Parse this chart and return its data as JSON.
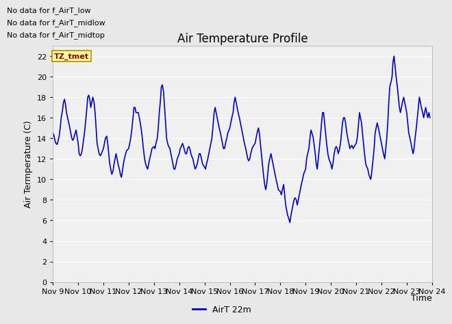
{
  "title": "Air Temperature Profile",
  "xlabel": "Time",
  "ylabel": "Air Termperature (C)",
  "xlim_days": [
    9,
    24
  ],
  "ylim": [
    0,
    23
  ],
  "yticks": [
    0,
    2,
    4,
    6,
    8,
    10,
    12,
    14,
    16,
    18,
    20,
    22
  ],
  "xtick_labels": [
    "Nov 9",
    "Nov 10",
    "Nov 11",
    "Nov 12",
    "Nov 13",
    "Nov 14",
    "Nov 15",
    "Nov 16",
    "Nov 17",
    "Nov 18",
    "Nov 19",
    "Nov 20",
    "Nov 21",
    "Nov 22",
    "Nov 23",
    "Nov 24"
  ],
  "line_color": "#0000cc",
  "line_width": 1.2,
  "bg_color": "#e8e8e8",
  "plot_bg_color": "#f0f0f0",
  "legend_label": "AirT 22m",
  "legend_line_color": "#0000cc",
  "annotations": [
    "No data for f_AirT_low",
    "No data for f_AirT_midlow",
    "No data for f_AirT_midtop"
  ],
  "tz_label": "TZ_tmet",
  "title_fontsize": 12,
  "axis_label_fontsize": 9,
  "tick_fontsize": 8,
  "annot_fontsize": 8,
  "time_series": [
    [
      9.0,
      14.5
    ],
    [
      9.04,
      14.3
    ],
    [
      9.08,
      13.8
    ],
    [
      9.12,
      13.5
    ],
    [
      9.17,
      13.4
    ],
    [
      9.21,
      13.8
    ],
    [
      9.25,
      14.2
    ],
    [
      9.29,
      15.0
    ],
    [
      9.33,
      16.0
    ],
    [
      9.38,
      16.7
    ],
    [
      9.42,
      17.5
    ],
    [
      9.46,
      17.8
    ],
    [
      9.5,
      17.3
    ],
    [
      9.54,
      16.5
    ],
    [
      9.58,
      16.0
    ],
    [
      9.63,
      15.5
    ],
    [
      9.67,
      15.0
    ],
    [
      9.71,
      14.5
    ],
    [
      9.75,
      14.0
    ],
    [
      9.79,
      13.8
    ],
    [
      9.83,
      14.0
    ],
    [
      9.88,
      14.5
    ],
    [
      9.92,
      14.8
    ],
    [
      10.0,
      13.5
    ],
    [
      10.04,
      12.5
    ],
    [
      10.08,
      12.3
    ],
    [
      10.13,
      12.5
    ],
    [
      10.17,
      13.0
    ],
    [
      10.21,
      13.8
    ],
    [
      10.25,
      14.5
    ],
    [
      10.29,
      15.5
    ],
    [
      10.33,
      16.5
    ],
    [
      10.38,
      18.0
    ],
    [
      10.42,
      18.2
    ],
    [
      10.46,
      17.8
    ],
    [
      10.5,
      17.0
    ],
    [
      10.54,
      17.5
    ],
    [
      10.58,
      18.0
    ],
    [
      10.63,
      17.5
    ],
    [
      10.67,
      16.5
    ],
    [
      10.71,
      15.0
    ],
    [
      10.75,
      13.5
    ],
    [
      10.79,
      13.0
    ],
    [
      10.83,
      12.5
    ],
    [
      10.88,
      12.3
    ],
    [
      10.92,
      12.5
    ],
    [
      11.0,
      13.0
    ],
    [
      11.04,
      13.5
    ],
    [
      11.08,
      14.0
    ],
    [
      11.13,
      14.2
    ],
    [
      11.17,
      13.5
    ],
    [
      11.21,
      12.5
    ],
    [
      11.25,
      11.5
    ],
    [
      11.29,
      11.0
    ],
    [
      11.33,
      10.5
    ],
    [
      11.38,
      10.8
    ],
    [
      11.42,
      11.5
    ],
    [
      11.46,
      12.0
    ],
    [
      11.5,
      12.5
    ],
    [
      11.54,
      12.0
    ],
    [
      11.58,
      11.5
    ],
    [
      11.63,
      11.0
    ],
    [
      11.67,
      10.5
    ],
    [
      11.71,
      10.2
    ],
    [
      11.75,
      10.8
    ],
    [
      11.79,
      11.5
    ],
    [
      11.83,
      12.0
    ],
    [
      11.88,
      12.5
    ],
    [
      11.92,
      12.8
    ],
    [
      12.0,
      13.0
    ],
    [
      12.04,
      13.5
    ],
    [
      12.08,
      14.0
    ],
    [
      12.13,
      15.0
    ],
    [
      12.17,
      16.0
    ],
    [
      12.21,
      17.0
    ],
    [
      12.25,
      17.0
    ],
    [
      12.29,
      16.5
    ],
    [
      12.33,
      16.5
    ],
    [
      12.38,
      16.5
    ],
    [
      12.42,
      16.0
    ],
    [
      12.46,
      15.5
    ],
    [
      12.5,
      14.8
    ],
    [
      12.54,
      14.0
    ],
    [
      12.58,
      13.0
    ],
    [
      12.63,
      12.0
    ],
    [
      12.67,
      11.5
    ],
    [
      12.71,
      11.2
    ],
    [
      12.75,
      11.0
    ],
    [
      12.79,
      11.5
    ],
    [
      12.83,
      12.0
    ],
    [
      12.88,
      12.5
    ],
    [
      12.92,
      13.0
    ],
    [
      13.0,
      13.2
    ],
    [
      13.04,
      13.0
    ],
    [
      13.08,
      13.5
    ],
    [
      13.13,
      14.0
    ],
    [
      13.17,
      15.0
    ],
    [
      13.21,
      16.5
    ],
    [
      13.25,
      17.5
    ],
    [
      13.29,
      19.0
    ],
    [
      13.33,
      19.2
    ],
    [
      13.38,
      18.5
    ],
    [
      13.42,
      17.0
    ],
    [
      13.46,
      15.5
    ],
    [
      13.5,
      14.0
    ],
    [
      13.54,
      13.5
    ],
    [
      13.58,
      13.2
    ],
    [
      13.63,
      13.0
    ],
    [
      13.67,
      12.5
    ],
    [
      13.71,
      12.0
    ],
    [
      13.75,
      11.5
    ],
    [
      13.79,
      11.0
    ],
    [
      13.83,
      11.0
    ],
    [
      13.88,
      11.5
    ],
    [
      13.92,
      12.0
    ],
    [
      14.0,
      12.5
    ],
    [
      14.04,
      13.0
    ],
    [
      14.08,
      13.2
    ],
    [
      14.13,
      13.5
    ],
    [
      14.17,
      13.2
    ],
    [
      14.21,
      12.8
    ],
    [
      14.25,
      12.5
    ],
    [
      14.29,
      12.5
    ],
    [
      14.33,
      13.0
    ],
    [
      14.38,
      13.2
    ],
    [
      14.42,
      13.0
    ],
    [
      14.46,
      12.5
    ],
    [
      14.5,
      12.2
    ],
    [
      14.54,
      12.0
    ],
    [
      14.58,
      11.5
    ],
    [
      14.63,
      11.0
    ],
    [
      14.67,
      11.2
    ],
    [
      14.71,
      11.5
    ],
    [
      14.75,
      12.0
    ],
    [
      14.79,
      12.5
    ],
    [
      14.83,
      12.5
    ],
    [
      14.88,
      12.0
    ],
    [
      14.92,
      11.5
    ],
    [
      15.0,
      11.2
    ],
    [
      15.04,
      11.0
    ],
    [
      15.08,
      11.5
    ],
    [
      15.13,
      12.0
    ],
    [
      15.17,
      12.5
    ],
    [
      15.21,
      13.0
    ],
    [
      15.25,
      13.5
    ],
    [
      15.29,
      14.0
    ],
    [
      15.33,
      15.0
    ],
    [
      15.38,
      16.5
    ],
    [
      15.42,
      17.0
    ],
    [
      15.46,
      16.5
    ],
    [
      15.5,
      16.0
    ],
    [
      15.54,
      15.5
    ],
    [
      15.58,
      15.0
    ],
    [
      15.63,
      14.5
    ],
    [
      15.67,
      14.0
    ],
    [
      15.71,
      13.5
    ],
    [
      15.75,
      13.0
    ],
    [
      15.79,
      13.0
    ],
    [
      15.83,
      13.5
    ],
    [
      15.88,
      14.0
    ],
    [
      15.92,
      14.5
    ],
    [
      16.0,
      15.0
    ],
    [
      16.04,
      15.5
    ],
    [
      16.08,
      16.0
    ],
    [
      16.13,
      16.5
    ],
    [
      16.17,
      17.5
    ],
    [
      16.21,
      18.0
    ],
    [
      16.25,
      17.5
    ],
    [
      16.29,
      17.0
    ],
    [
      16.33,
      16.5
    ],
    [
      16.38,
      16.0
    ],
    [
      16.42,
      15.5
    ],
    [
      16.46,
      15.0
    ],
    [
      16.5,
      14.5
    ],
    [
      16.54,
      14.0
    ],
    [
      16.58,
      13.5
    ],
    [
      16.63,
      13.0
    ],
    [
      16.67,
      12.5
    ],
    [
      16.71,
      12.0
    ],
    [
      16.75,
      11.8
    ],
    [
      16.79,
      12.0
    ],
    [
      16.83,
      12.5
    ],
    [
      16.88,
      13.0
    ],
    [
      16.92,
      13.2
    ],
    [
      17.0,
      13.5
    ],
    [
      17.04,
      14.0
    ],
    [
      17.08,
      14.5
    ],
    [
      17.13,
      15.0
    ],
    [
      17.17,
      14.5
    ],
    [
      17.21,
      13.5
    ],
    [
      17.25,
      12.5
    ],
    [
      17.29,
      11.5
    ],
    [
      17.33,
      10.5
    ],
    [
      17.38,
      9.5
    ],
    [
      17.42,
      9.0
    ],
    [
      17.46,
      9.5
    ],
    [
      17.5,
      10.5
    ],
    [
      17.54,
      11.5
    ],
    [
      17.58,
      12.0
    ],
    [
      17.63,
      12.5
    ],
    [
      17.67,
      12.0
    ],
    [
      17.71,
      11.5
    ],
    [
      17.75,
      11.0
    ],
    [
      17.79,
      10.5
    ],
    [
      17.83,
      10.0
    ],
    [
      17.88,
      9.5
    ],
    [
      17.92,
      9.0
    ],
    [
      18.0,
      8.8
    ],
    [
      18.04,
      8.5
    ],
    [
      18.08,
      9.0
    ],
    [
      18.13,
      9.5
    ],
    [
      18.17,
      8.5
    ],
    [
      18.21,
      7.5
    ],
    [
      18.25,
      7.0
    ],
    [
      18.29,
      6.5
    ],
    [
      18.33,
      6.2
    ],
    [
      18.38,
      5.8
    ],
    [
      18.42,
      6.5
    ],
    [
      18.46,
      7.0
    ],
    [
      18.5,
      7.5
    ],
    [
      18.54,
      8.0
    ],
    [
      18.58,
      8.2
    ],
    [
      18.63,
      8.0
    ],
    [
      18.67,
      7.5
    ],
    [
      18.71,
      8.0
    ],
    [
      18.75,
      8.5
    ],
    [
      18.79,
      9.0
    ],
    [
      18.83,
      9.5
    ],
    [
      18.88,
      10.0
    ],
    [
      18.92,
      10.5
    ],
    [
      19.0,
      11.0
    ],
    [
      19.04,
      12.0
    ],
    [
      19.08,
      12.5
    ],
    [
      19.13,
      13.0
    ],
    [
      19.17,
      14.0
    ],
    [
      19.21,
      14.8
    ],
    [
      19.25,
      14.5
    ],
    [
      19.29,
      14.2
    ],
    [
      19.33,
      13.5
    ],
    [
      19.38,
      12.5
    ],
    [
      19.42,
      11.5
    ],
    [
      19.46,
      11.0
    ],
    [
      19.5,
      12.0
    ],
    [
      19.54,
      13.0
    ],
    [
      19.58,
      14.0
    ],
    [
      19.63,
      15.5
    ],
    [
      19.67,
      16.5
    ],
    [
      19.71,
      16.5
    ],
    [
      19.75,
      15.5
    ],
    [
      19.79,
      14.5
    ],
    [
      19.83,
      13.5
    ],
    [
      19.88,
      12.5
    ],
    [
      19.92,
      12.0
    ],
    [
      20.0,
      11.5
    ],
    [
      20.04,
      11.0
    ],
    [
      20.08,
      11.5
    ],
    [
      20.13,
      12.5
    ],
    [
      20.17,
      13.0
    ],
    [
      20.21,
      13.2
    ],
    [
      20.25,
      13.0
    ],
    [
      20.29,
      12.5
    ],
    [
      20.33,
      12.8
    ],
    [
      20.38,
      13.5
    ],
    [
      20.42,
      14.5
    ],
    [
      20.46,
      15.5
    ],
    [
      20.5,
      16.0
    ],
    [
      20.54,
      16.0
    ],
    [
      20.58,
      15.5
    ],
    [
      20.63,
      14.5
    ],
    [
      20.71,
      13.5
    ],
    [
      20.75,
      13.0
    ],
    [
      20.79,
      13.2
    ],
    [
      20.83,
      13.3
    ],
    [
      20.88,
      13.0
    ],
    [
      20.92,
      13.2
    ],
    [
      21.0,
      13.5
    ],
    [
      21.04,
      14.0
    ],
    [
      21.08,
      15.0
    ],
    [
      21.13,
      16.5
    ],
    [
      21.17,
      16.0
    ],
    [
      21.21,
      15.5
    ],
    [
      21.25,
      14.5
    ],
    [
      21.29,
      13.5
    ],
    [
      21.33,
      12.5
    ],
    [
      21.38,
      11.5
    ],
    [
      21.42,
      11.2
    ],
    [
      21.46,
      11.0
    ],
    [
      21.5,
      10.5
    ],
    [
      21.54,
      10.2
    ],
    [
      21.58,
      10.0
    ],
    [
      21.63,
      11.0
    ],
    [
      21.67,
      12.0
    ],
    [
      21.71,
      13.0
    ],
    [
      21.75,
      14.5
    ],
    [
      21.79,
      15.0
    ],
    [
      21.83,
      15.5
    ],
    [
      21.88,
      15.0
    ],
    [
      21.92,
      14.5
    ],
    [
      22.0,
      13.5
    ],
    [
      22.04,
      13.0
    ],
    [
      22.08,
      12.5
    ],
    [
      22.13,
      12.0
    ],
    [
      22.17,
      13.0
    ],
    [
      22.21,
      14.0
    ],
    [
      22.25,
      15.5
    ],
    [
      22.29,
      17.5
    ],
    [
      22.33,
      19.0
    ],
    [
      22.38,
      19.5
    ],
    [
      22.42,
      20.0
    ],
    [
      22.46,
      21.5
    ],
    [
      22.5,
      22.0
    ],
    [
      22.54,
      21.0
    ],
    [
      22.58,
      20.0
    ],
    [
      22.63,
      19.0
    ],
    [
      22.67,
      18.0
    ],
    [
      22.71,
      17.0
    ],
    [
      22.75,
      16.5
    ],
    [
      22.79,
      17.0
    ],
    [
      22.83,
      17.5
    ],
    [
      22.88,
      18.0
    ],
    [
      22.92,
      17.5
    ],
    [
      23.0,
      16.5
    ],
    [
      23.04,
      15.5
    ],
    [
      23.08,
      14.5
    ],
    [
      23.13,
      14.0
    ],
    [
      23.17,
      13.5
    ],
    [
      23.21,
      13.0
    ],
    [
      23.25,
      12.5
    ],
    [
      23.29,
      13.0
    ],
    [
      23.33,
      14.0
    ],
    [
      23.38,
      15.0
    ],
    [
      23.42,
      16.0
    ],
    [
      23.46,
      17.0
    ],
    [
      23.5,
      18.0
    ],
    [
      23.54,
      17.5
    ],
    [
      23.58,
      17.0
    ],
    [
      23.63,
      16.5
    ],
    [
      23.67,
      16.0
    ],
    [
      23.71,
      16.5
    ],
    [
      23.75,
      17.0
    ],
    [
      23.79,
      16.5
    ],
    [
      23.83,
      16.0
    ],
    [
      23.88,
      16.5
    ],
    [
      23.92,
      16.0
    ]
  ]
}
